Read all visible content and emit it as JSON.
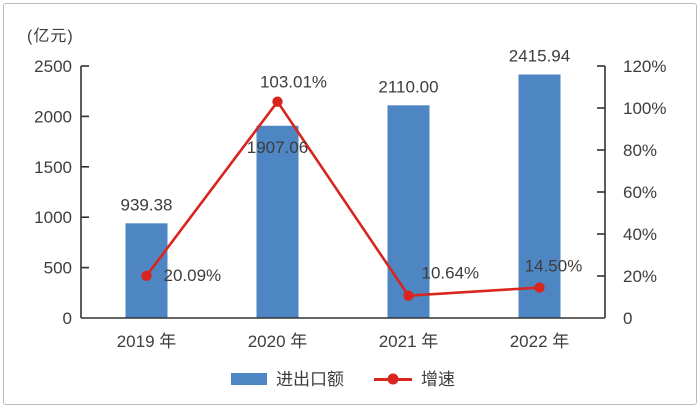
{
  "chart_data": {
    "type": "bar+line",
    "title": "",
    "unit_label": "(亿元)",
    "categories": [
      "2019 年",
      "2020 年",
      "2021 年",
      "2022 年"
    ],
    "series": [
      {
        "name": "进出口额",
        "type": "bar",
        "axis": "left",
        "color": "#4e86c4",
        "values": [
          939.38,
          1907.06,
          2110.0,
          2415.94
        ],
        "labels": [
          "939.38",
          "1907.06",
          "2110.00",
          "2415.94"
        ]
      },
      {
        "name": "增速",
        "type": "line",
        "axis": "right",
        "color": "#d8251e",
        "values": [
          20.09,
          103.01,
          10.64,
          14.5
        ],
        "labels": [
          "20.09%",
          "103.01%",
          "10.64%",
          "14.50%"
        ]
      }
    ],
    "left_axis": {
      "min": 0,
      "max": 2500,
      "step": 500,
      "tick_labels": [
        "0",
        "500",
        "1000",
        "1500",
        "2000",
        "2500"
      ]
    },
    "right_axis": {
      "min": 0,
      "max": 120,
      "step": 20,
      "tick_labels": [
        "0",
        "20%",
        "40%",
        "60%",
        "80%",
        "100%",
        "120%"
      ]
    },
    "legend": {
      "position": "bottom",
      "items": [
        "进出口额",
        "增速"
      ]
    },
    "grid": false,
    "colors": {
      "bar": "#4e86c4",
      "line": "#d8251e",
      "text": "#3d3d3d",
      "axis": "#333333",
      "border": "#b9b9b9"
    }
  }
}
